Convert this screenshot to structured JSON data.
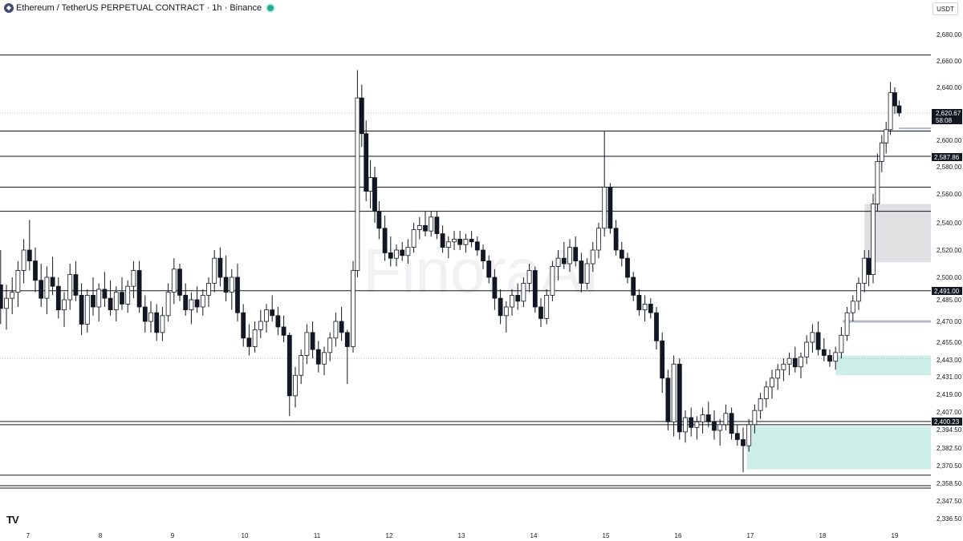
{
  "header": {
    "symbol_icon": "ethereum-icon",
    "title": "Ethereum / TetherUS PERPETUAL CONTRACT · 1h · Binance",
    "status_color": "#22ab94"
  },
  "currency": "USDT",
  "watermark": "FinoraAI",
  "logo": "TV",
  "price_tag": {
    "price": "2,620.67",
    "countdown": "58:08",
    "color": "#131722"
  },
  "level_tags": [
    "2,587.86",
    "2,491.00",
    "2,400.23"
  ],
  "colors": {
    "up": "#ffffff",
    "down": "#131722",
    "demand_zone": "#cdeee7",
    "supply_zone": "#e0e0e3",
    "line": "#131722"
  },
  "chart_data": {
    "type": "candlestick",
    "y_tick_labels": [
      "2,680.00",
      "2,660.00",
      "2,640.00",
      "2,620.00",
      "2,600.00",
      "2,580.00",
      "2,560.00",
      "2,540.00",
      "2,520.00",
      "2,500.00",
      "2,485.00",
      "2,470.00",
      "2,455.00",
      "2,443.00",
      "2,431.00",
      "2,419.00",
      "2,407.00",
      "2,394.50",
      "2,382.50",
      "2,370.50",
      "2,358.50",
      "2,347.50",
      "2,336.50"
    ],
    "x_tick_labels": [
      "7",
      "8",
      "9",
      "10",
      "11",
      "12",
      "13",
      "14",
      "15",
      "16",
      "17",
      "18",
      "19"
    ],
    "ylim": [
      2336.5,
      2680
    ],
    "horizontal_levels": [
      2664.5,
      2607,
      2587.86,
      2565,
      2548,
      2491,
      2400.23,
      2398,
      2364,
      2357,
      2355.5
    ],
    "shortline_levels": [
      2609,
      2470
    ],
    "zones": [
      {
        "kind": "supply",
        "top": 2553,
        "bottom": 2511,
        "x_start": 18.58
      },
      {
        "kind": "demand",
        "top": 2446,
        "bottom": 2432,
        "x_start": 18.18
      },
      {
        "kind": "demand",
        "top": 2397,
        "bottom": 2368,
        "x_start": 16.95
      }
    ],
    "series": [
      {
        "x": 6.62,
        "o": 2495,
        "h": 2520,
        "l": 2468,
        "c": 2479
      },
      {
        "x": 6.7,
        "o": 2479,
        "h": 2495,
        "l": 2464,
        "c": 2486
      },
      {
        "x": 6.78,
        "o": 2486,
        "h": 2500,
        "l": 2475,
        "c": 2490
      },
      {
        "x": 6.86,
        "o": 2490,
        "h": 2512,
        "l": 2480,
        "c": 2505
      },
      {
        "x": 6.94,
        "o": 2505,
        "h": 2528,
        "l": 2496,
        "c": 2520
      },
      {
        "x": 7.02,
        "o": 2520,
        "h": 2542,
        "l": 2505,
        "c": 2512
      },
      {
        "x": 7.1,
        "o": 2512,
        "h": 2522,
        "l": 2490,
        "c": 2498
      },
      {
        "x": 7.18,
        "o": 2498,
        "h": 2510,
        "l": 2480,
        "c": 2486
      },
      {
        "x": 7.26,
        "o": 2486,
        "h": 2508,
        "l": 2475,
        "c": 2500
      },
      {
        "x": 7.34,
        "o": 2500,
        "h": 2515,
        "l": 2488,
        "c": 2494
      },
      {
        "x": 7.42,
        "o": 2494,
        "h": 2500,
        "l": 2472,
        "c": 2478
      },
      {
        "x": 7.5,
        "o": 2478,
        "h": 2490,
        "l": 2466,
        "c": 2485
      },
      {
        "x": 7.58,
        "o": 2485,
        "h": 2510,
        "l": 2478,
        "c": 2502
      },
      {
        "x": 7.66,
        "o": 2502,
        "h": 2512,
        "l": 2484,
        "c": 2488
      },
      {
        "x": 7.74,
        "o": 2488,
        "h": 2496,
        "l": 2460,
        "c": 2468
      },
      {
        "x": 7.82,
        "o": 2468,
        "h": 2492,
        "l": 2462,
        "c": 2488
      },
      {
        "x": 7.9,
        "o": 2488,
        "h": 2500,
        "l": 2474,
        "c": 2480
      },
      {
        "x": 7.98,
        "o": 2480,
        "h": 2496,
        "l": 2470,
        "c": 2492
      },
      {
        "x": 8.06,
        "o": 2492,
        "h": 2504,
        "l": 2480,
        "c": 2486
      },
      {
        "x": 8.14,
        "o": 2486,
        "h": 2498,
        "l": 2474,
        "c": 2478
      },
      {
        "x": 8.22,
        "o": 2478,
        "h": 2494,
        "l": 2470,
        "c": 2490
      },
      {
        "x": 8.3,
        "o": 2490,
        "h": 2500,
        "l": 2478,
        "c": 2482
      },
      {
        "x": 8.38,
        "o": 2482,
        "h": 2498,
        "l": 2476,
        "c": 2494
      },
      {
        "x": 8.46,
        "o": 2494,
        "h": 2512,
        "l": 2486,
        "c": 2505
      },
      {
        "x": 8.54,
        "o": 2505,
        "h": 2512,
        "l": 2476,
        "c": 2480
      },
      {
        "x": 8.62,
        "o": 2480,
        "h": 2488,
        "l": 2462,
        "c": 2470
      },
      {
        "x": 8.7,
        "o": 2470,
        "h": 2484,
        "l": 2462,
        "c": 2476
      },
      {
        "x": 8.78,
        "o": 2476,
        "h": 2482,
        "l": 2456,
        "c": 2462
      },
      {
        "x": 8.86,
        "o": 2462,
        "h": 2480,
        "l": 2456,
        "c": 2474
      },
      {
        "x": 8.94,
        "o": 2474,
        "h": 2496,
        "l": 2470,
        "c": 2490
      },
      {
        "x": 9.02,
        "o": 2490,
        "h": 2514,
        "l": 2482,
        "c": 2506
      },
      {
        "x": 9.1,
        "o": 2506,
        "h": 2510,
        "l": 2484,
        "c": 2488
      },
      {
        "x": 9.18,
        "o": 2488,
        "h": 2496,
        "l": 2474,
        "c": 2478
      },
      {
        "x": 9.26,
        "o": 2478,
        "h": 2490,
        "l": 2468,
        "c": 2485
      },
      {
        "x": 9.34,
        "o": 2485,
        "h": 2494,
        "l": 2476,
        "c": 2480
      },
      {
        "x": 9.42,
        "o": 2480,
        "h": 2492,
        "l": 2474,
        "c": 2488
      },
      {
        "x": 9.5,
        "o": 2488,
        "h": 2500,
        "l": 2480,
        "c": 2496
      },
      {
        "x": 9.58,
        "o": 2496,
        "h": 2520,
        "l": 2490,
        "c": 2514
      },
      {
        "x": 9.66,
        "o": 2514,
        "h": 2522,
        "l": 2494,
        "c": 2500
      },
      {
        "x": 9.74,
        "o": 2500,
        "h": 2516,
        "l": 2484,
        "c": 2490
      },
      {
        "x": 9.82,
        "o": 2490,
        "h": 2506,
        "l": 2478,
        "c": 2500
      },
      {
        "x": 9.9,
        "o": 2500,
        "h": 2510,
        "l": 2470,
        "c": 2476
      },
      {
        "x": 9.98,
        "o": 2476,
        "h": 2482,
        "l": 2452,
        "c": 2458
      },
      {
        "x": 10.06,
        "o": 2458,
        "h": 2468,
        "l": 2446,
        "c": 2452
      },
      {
        "x": 10.14,
        "o": 2452,
        "h": 2470,
        "l": 2448,
        "c": 2464
      },
      {
        "x": 10.22,
        "o": 2464,
        "h": 2478,
        "l": 2458,
        "c": 2470
      },
      {
        "x": 10.3,
        "o": 2470,
        "h": 2482,
        "l": 2462,
        "c": 2478
      },
      {
        "x": 10.38,
        "o": 2478,
        "h": 2488,
        "l": 2470,
        "c": 2474
      },
      {
        "x": 10.46,
        "o": 2474,
        "h": 2480,
        "l": 2460,
        "c": 2466
      },
      {
        "x": 10.54,
        "o": 2466,
        "h": 2474,
        "l": 2455,
        "c": 2460
      },
      {
        "x": 10.62,
        "o": 2460,
        "h": 2462,
        "l": 2404,
        "c": 2418
      },
      {
        "x": 10.7,
        "o": 2418,
        "h": 2438,
        "l": 2410,
        "c": 2432
      },
      {
        "x": 10.78,
        "o": 2432,
        "h": 2450,
        "l": 2426,
        "c": 2446
      },
      {
        "x": 10.86,
        "o": 2446,
        "h": 2468,
        "l": 2440,
        "c": 2462
      },
      {
        "x": 10.94,
        "o": 2462,
        "h": 2470,
        "l": 2444,
        "c": 2450
      },
      {
        "x": 11.02,
        "o": 2450,
        "h": 2456,
        "l": 2434,
        "c": 2440
      },
      {
        "x": 11.1,
        "o": 2440,
        "h": 2452,
        "l": 2432,
        "c": 2448
      },
      {
        "x": 11.18,
        "o": 2448,
        "h": 2462,
        "l": 2442,
        "c": 2458
      },
      {
        "x": 11.26,
        "o": 2458,
        "h": 2476,
        "l": 2452,
        "c": 2470
      },
      {
        "x": 11.34,
        "o": 2470,
        "h": 2480,
        "l": 2456,
        "c": 2462
      },
      {
        "x": 11.42,
        "o": 2462,
        "h": 2464,
        "l": 2426,
        "c": 2452
      },
      {
        "x": 11.5,
        "o": 2452,
        "h": 2512,
        "l": 2448,
        "c": 2505
      },
      {
        "x": 11.56,
        "o": 2505,
        "h": 2653,
        "l": 2500,
        "c": 2632
      },
      {
        "x": 11.62,
        "o": 2632,
        "h": 2642,
        "l": 2595,
        "c": 2605
      },
      {
        "x": 11.68,
        "o": 2605,
        "h": 2615,
        "l": 2555,
        "c": 2562
      },
      {
        "x": 11.74,
        "o": 2562,
        "h": 2585,
        "l": 2550,
        "c": 2572
      },
      {
        "x": 11.8,
        "o": 2572,
        "h": 2580,
        "l": 2540,
        "c": 2548
      },
      {
        "x": 11.86,
        "o": 2548,
        "h": 2555,
        "l": 2528,
        "c": 2536
      },
      {
        "x": 11.94,
        "o": 2536,
        "h": 2545,
        "l": 2512,
        "c": 2518
      },
      {
        "x": 12.02,
        "o": 2518,
        "h": 2530,
        "l": 2508,
        "c": 2514
      },
      {
        "x": 12.1,
        "o": 2514,
        "h": 2524,
        "l": 2508,
        "c": 2520
      },
      {
        "x": 12.18,
        "o": 2520,
        "h": 2526,
        "l": 2512,
        "c": 2516
      },
      {
        "x": 12.26,
        "o": 2516,
        "h": 2528,
        "l": 2510,
        "c": 2522
      },
      {
        "x": 12.34,
        "o": 2522,
        "h": 2540,
        "l": 2518,
        "c": 2535
      },
      {
        "x": 12.42,
        "o": 2535,
        "h": 2544,
        "l": 2528,
        "c": 2538
      },
      {
        "x": 12.5,
        "o": 2538,
        "h": 2548,
        "l": 2530,
        "c": 2534
      },
      {
        "x": 12.58,
        "o": 2534,
        "h": 2548,
        "l": 2530,
        "c": 2544
      },
      {
        "x": 12.66,
        "o": 2544,
        "h": 2548,
        "l": 2528,
        "c": 2532
      },
      {
        "x": 12.74,
        "o": 2532,
        "h": 2538,
        "l": 2518,
        "c": 2522
      },
      {
        "x": 12.82,
        "o": 2522,
        "h": 2530,
        "l": 2514,
        "c": 2526
      },
      {
        "x": 12.9,
        "o": 2526,
        "h": 2534,
        "l": 2520,
        "c": 2528
      },
      {
        "x": 12.98,
        "o": 2528,
        "h": 2534,
        "l": 2520,
        "c": 2524
      },
      {
        "x": 13.06,
        "o": 2524,
        "h": 2532,
        "l": 2518,
        "c": 2528
      },
      {
        "x": 13.14,
        "o": 2528,
        "h": 2534,
        "l": 2522,
        "c": 2526
      },
      {
        "x": 13.22,
        "o": 2526,
        "h": 2530,
        "l": 2516,
        "c": 2520
      },
      {
        "x": 13.3,
        "o": 2520,
        "h": 2524,
        "l": 2506,
        "c": 2512
      },
      {
        "x": 13.38,
        "o": 2512,
        "h": 2516,
        "l": 2496,
        "c": 2500
      },
      {
        "x": 13.46,
        "o": 2500,
        "h": 2506,
        "l": 2478,
        "c": 2486
      },
      {
        "x": 13.54,
        "o": 2486,
        "h": 2492,
        "l": 2468,
        "c": 2474
      },
      {
        "x": 13.62,
        "o": 2474,
        "h": 2484,
        "l": 2462,
        "c": 2480
      },
      {
        "x": 13.7,
        "o": 2480,
        "h": 2492,
        "l": 2474,
        "c": 2488
      },
      {
        "x": 13.78,
        "o": 2488,
        "h": 2496,
        "l": 2478,
        "c": 2484
      },
      {
        "x": 13.86,
        "o": 2484,
        "h": 2500,
        "l": 2480,
        "c": 2496
      },
      {
        "x": 13.94,
        "o": 2496,
        "h": 2510,
        "l": 2490,
        "c": 2505
      },
      {
        "x": 14.02,
        "o": 2505,
        "h": 2508,
        "l": 2476,
        "c": 2480
      },
      {
        "x": 14.1,
        "o": 2480,
        "h": 2486,
        "l": 2466,
        "c": 2472
      },
      {
        "x": 14.18,
        "o": 2472,
        "h": 2492,
        "l": 2468,
        "c": 2488
      },
      {
        "x": 14.26,
        "o": 2488,
        "h": 2512,
        "l": 2484,
        "c": 2508
      },
      {
        "x": 14.34,
        "o": 2508,
        "h": 2520,
        "l": 2498,
        "c": 2514
      },
      {
        "x": 14.42,
        "o": 2514,
        "h": 2526,
        "l": 2506,
        "c": 2510
      },
      {
        "x": 14.5,
        "o": 2510,
        "h": 2528,
        "l": 2504,
        "c": 2522
      },
      {
        "x": 14.58,
        "o": 2522,
        "h": 2530,
        "l": 2508,
        "c": 2512
      },
      {
        "x": 14.66,
        "o": 2512,
        "h": 2518,
        "l": 2490,
        "c": 2496
      },
      {
        "x": 14.74,
        "o": 2496,
        "h": 2514,
        "l": 2492,
        "c": 2510
      },
      {
        "x": 14.82,
        "o": 2510,
        "h": 2526,
        "l": 2504,
        "c": 2520
      },
      {
        "x": 14.9,
        "o": 2520,
        "h": 2540,
        "l": 2514,
        "c": 2536
      },
      {
        "x": 14.98,
        "o": 2536,
        "h": 2607,
        "l": 2530,
        "c": 2565
      },
      {
        "x": 15.06,
        "o": 2565,
        "h": 2568,
        "l": 2532,
        "c": 2536
      },
      {
        "x": 15.14,
        "o": 2536,
        "h": 2542,
        "l": 2516,
        "c": 2520
      },
      {
        "x": 15.22,
        "o": 2520,
        "h": 2526,
        "l": 2508,
        "c": 2514
      },
      {
        "x": 15.3,
        "o": 2514,
        "h": 2518,
        "l": 2496,
        "c": 2500
      },
      {
        "x": 15.38,
        "o": 2500,
        "h": 2504,
        "l": 2484,
        "c": 2488
      },
      {
        "x": 15.46,
        "o": 2488,
        "h": 2492,
        "l": 2474,
        "c": 2478
      },
      {
        "x": 15.54,
        "o": 2478,
        "h": 2488,
        "l": 2470,
        "c": 2482
      },
      {
        "x": 15.62,
        "o": 2482,
        "h": 2486,
        "l": 2472,
        "c": 2476
      },
      {
        "x": 15.7,
        "o": 2476,
        "h": 2480,
        "l": 2450,
        "c": 2456
      },
      {
        "x": 15.78,
        "o": 2456,
        "h": 2462,
        "l": 2420,
        "c": 2430
      },
      {
        "x": 15.86,
        "o": 2430,
        "h": 2436,
        "l": 2394,
        "c": 2400
      },
      {
        "x": 15.94,
        "o": 2400,
        "h": 2446,
        "l": 2390,
        "c": 2440
      },
      {
        "x": 16.02,
        "o": 2440,
        "h": 2444,
        "l": 2388,
        "c": 2393
      },
      {
        "x": 16.1,
        "o": 2393,
        "h": 2408,
        "l": 2386,
        "c": 2403
      },
      {
        "x": 16.18,
        "o": 2403,
        "h": 2410,
        "l": 2390,
        "c": 2396
      },
      {
        "x": 16.26,
        "o": 2396,
        "h": 2404,
        "l": 2388,
        "c": 2400
      },
      {
        "x": 16.34,
        "o": 2400,
        "h": 2410,
        "l": 2392,
        "c": 2405
      },
      {
        "x": 16.42,
        "o": 2405,
        "h": 2414,
        "l": 2396,
        "c": 2400
      },
      {
        "x": 16.5,
        "o": 2400,
        "h": 2408,
        "l": 2388,
        "c": 2394
      },
      {
        "x": 16.58,
        "o": 2394,
        "h": 2402,
        "l": 2384,
        "c": 2398
      },
      {
        "x": 16.66,
        "o": 2398,
        "h": 2412,
        "l": 2394,
        "c": 2406
      },
      {
        "x": 16.74,
        "o": 2406,
        "h": 2410,
        "l": 2388,
        "c": 2392
      },
      {
        "x": 16.82,
        "o": 2392,
        "h": 2398,
        "l": 2384,
        "c": 2388
      },
      {
        "x": 16.9,
        "o": 2388,
        "h": 2396,
        "l": 2366,
        "c": 2384
      },
      {
        "x": 16.98,
        "o": 2384,
        "h": 2402,
        "l": 2380,
        "c": 2398
      },
      {
        "x": 17.06,
        "o": 2398,
        "h": 2412,
        "l": 2392,
        "c": 2408
      },
      {
        "x": 17.14,
        "o": 2408,
        "h": 2420,
        "l": 2402,
        "c": 2416
      },
      {
        "x": 17.22,
        "o": 2416,
        "h": 2428,
        "l": 2410,
        "c": 2424
      },
      {
        "x": 17.3,
        "o": 2424,
        "h": 2436,
        "l": 2416,
        "c": 2430
      },
      {
        "x": 17.38,
        "o": 2430,
        "h": 2440,
        "l": 2422,
        "c": 2436
      },
      {
        "x": 17.46,
        "o": 2436,
        "h": 2444,
        "l": 2428,
        "c": 2440
      },
      {
        "x": 17.54,
        "o": 2440,
        "h": 2448,
        "l": 2432,
        "c": 2444
      },
      {
        "x": 17.62,
        "o": 2444,
        "h": 2452,
        "l": 2434,
        "c": 2438
      },
      {
        "x": 17.7,
        "o": 2438,
        "h": 2448,
        "l": 2430,
        "c": 2445
      },
      {
        "x": 17.78,
        "o": 2445,
        "h": 2460,
        "l": 2440,
        "c": 2455
      },
      {
        "x": 17.86,
        "o": 2455,
        "h": 2468,
        "l": 2448,
        "c": 2462
      },
      {
        "x": 17.94,
        "o": 2462,
        "h": 2470,
        "l": 2446,
        "c": 2450
      },
      {
        "x": 18.02,
        "o": 2450,
        "h": 2458,
        "l": 2442,
        "c": 2446
      },
      {
        "x": 18.1,
        "o": 2446,
        "h": 2450,
        "l": 2438,
        "c": 2442
      },
      {
        "x": 18.18,
        "o": 2442,
        "h": 2452,
        "l": 2436,
        "c": 2448
      },
      {
        "x": 18.26,
        "o": 2448,
        "h": 2466,
        "l": 2444,
        "c": 2460
      },
      {
        "x": 18.34,
        "o": 2460,
        "h": 2480,
        "l": 2456,
        "c": 2476
      },
      {
        "x": 18.42,
        "o": 2476,
        "h": 2488,
        "l": 2470,
        "c": 2484
      },
      {
        "x": 18.5,
        "o": 2484,
        "h": 2500,
        "l": 2478,
        "c": 2496
      },
      {
        "x": 18.58,
        "o": 2496,
        "h": 2520,
        "l": 2490,
        "c": 2514
      },
      {
        "x": 18.64,
        "o": 2514,
        "h": 2520,
        "l": 2494,
        "c": 2502
      },
      {
        "x": 18.7,
        "o": 2502,
        "h": 2560,
        "l": 2496,
        "c": 2553
      },
      {
        "x": 18.76,
        "o": 2553,
        "h": 2590,
        "l": 2548,
        "c": 2584
      },
      {
        "x": 18.82,
        "o": 2584,
        "h": 2604,
        "l": 2576,
        "c": 2598
      },
      {
        "x": 18.88,
        "o": 2598,
        "h": 2614,
        "l": 2590,
        "c": 2608
      },
      {
        "x": 18.94,
        "o": 2608,
        "h": 2644,
        "l": 2604,
        "c": 2636
      },
      {
        "x": 19.0,
        "o": 2636,
        "h": 2640,
        "l": 2620,
        "c": 2626
      },
      {
        "x": 19.06,
        "o": 2626,
        "h": 2630,
        "l": 2618,
        "c": 2620.67
      }
    ]
  }
}
